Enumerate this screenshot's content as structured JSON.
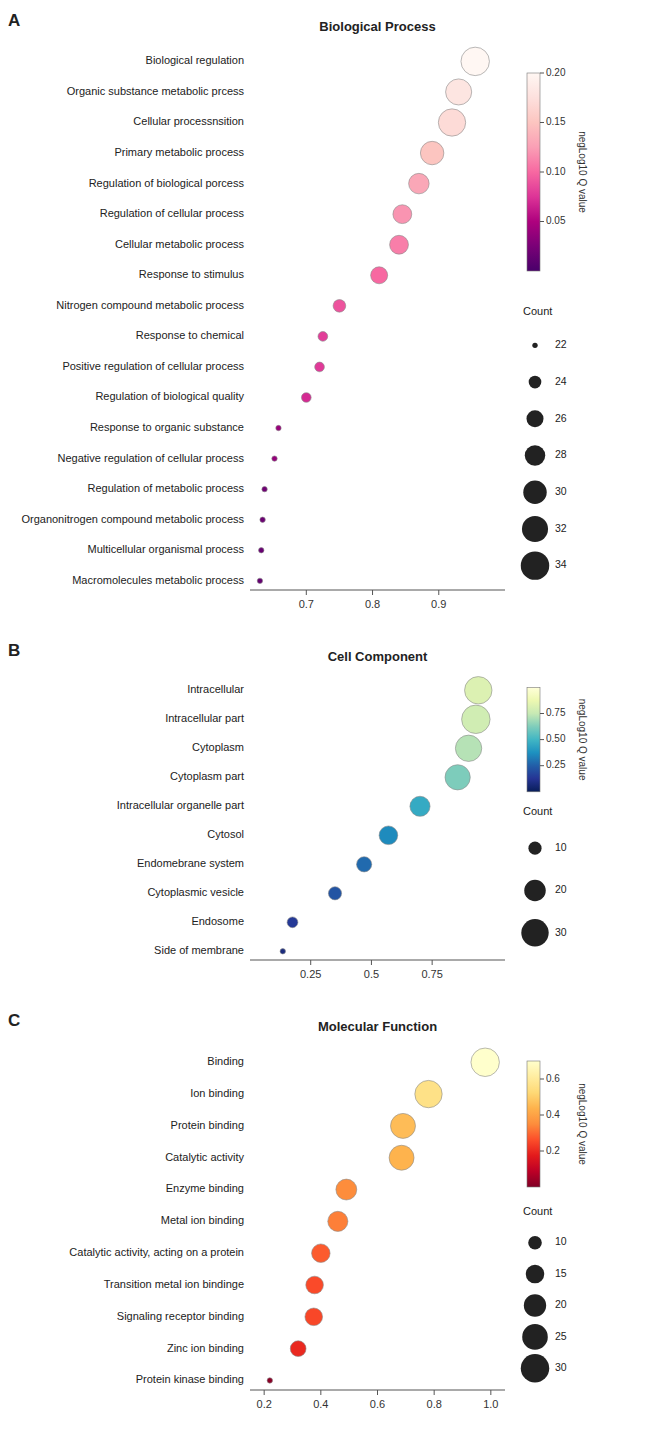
{
  "chart_data": [
    {
      "type": "scatter",
      "orientation": "horizontal",
      "grid": false,
      "panel_label": "A",
      "title": "Biological Process",
      "categories": [
        "Biological regulation",
        "Organic substance metabolic prcess",
        "Cellular processnsition",
        "Primary metabolic process",
        "Regulation of biological porcess",
        "Regulation of cellular process",
        "Cellular metabolic process",
        "Response to stimulus",
        "Nitrogen compound metabolic process",
        "Response to chemical",
        "Positive regulation of cellular process",
        "Regulation of biological quality",
        "Response to organic substance",
        "Negative regulation of cellular process",
        "Regulation of metabolic process",
        "Organonitrogen compound metabolic process",
        "Multicellular organismal process",
        "Macromolecules metabolic process"
      ],
      "values": [
        0.955,
        0.93,
        0.92,
        0.89,
        0.87,
        0.845,
        0.84,
        0.81,
        0.75,
        0.725,
        0.72,
        0.7,
        0.658,
        0.652,
        0.637,
        0.634,
        0.632,
        0.63
      ],
      "sizes": [
        34,
        32,
        33,
        30,
        28,
        27,
        27,
        26,
        24,
        23,
        23,
        23,
        22,
        22,
        22,
        22,
        22,
        22
      ],
      "size_range": [
        22,
        34
      ],
      "size_label": "Count",
      "size_legend": [
        22,
        24,
        26,
        28,
        30,
        32,
        34
      ],
      "color_values": [
        0.2,
        0.18,
        0.17,
        0.15,
        0.13,
        0.12,
        0.11,
        0.1,
        0.09,
        0.08,
        0.078,
        0.07,
        0.04,
        0.038,
        0.02,
        0.018,
        0.016,
        0.014
      ],
      "color_range": [
        0.0,
        0.2
      ],
      "color_ticks": [
        0.05,
        {
          "value": 0.1,
          "label": "0.10"
        },
        0.15,
        {
          "value": 0.2,
          "label": "0.20"
        }
      ],
      "color_label": "negLog10 Q value",
      "xlim": [
        0.615,
        1.0
      ],
      "xticks": [
        0.7,
        0.8,
        0.9
      ]
    },
    {
      "type": "scatter",
      "orientation": "horizontal",
      "grid": false,
      "panel_label": "B",
      "title": "Cell Component",
      "categories": [
        "Intracellular",
        "Intracellular part",
        "Cytoplasm",
        "Cytoplasm part",
        "Intracellular organelle part",
        "Cytosol",
        "Endomebrane system",
        "Cytoplasmic vesicle",
        "Endosome",
        "Side of membrane"
      ],
      "values": [
        0.94,
        0.93,
        0.9,
        0.855,
        0.7,
        0.57,
        0.47,
        0.35,
        0.175,
        0.135
      ],
      "sizes": [
        30,
        32,
        28,
        26,
        18,
        16,
        12,
        10,
        8,
        5
      ],
      "size_range": [
        5,
        32
      ],
      "size_label": "Count",
      "size_legend": [
        10,
        20,
        30
      ],
      "color_values": [
        0.82,
        0.78,
        0.72,
        0.62,
        0.46,
        0.36,
        0.28,
        0.22,
        0.14,
        0.08
      ],
      "color_range": [
        0.0,
        1.0
      ],
      "color_ticks": [
        0.25,
        {
          "value": 0.5,
          "label": "0.50"
        },
        0.75
      ],
      "color_label": "negLog10 Q value",
      "xlim": [
        0.0,
        1.05
      ],
      "xticks": [
        0.25,
        0.5,
        0.75
      ]
    },
    {
      "type": "scatter",
      "orientation": "horizontal",
      "grid": false,
      "panel_label": "C",
      "title": "Molecular Function",
      "categories": [
        "Binding",
        "Ion binding",
        "Protein binding",
        "Catalytic activity",
        "Enzyme binding",
        "Metal ion binding",
        "Catalytic activity, acting on a protein",
        "Transition metal ion bindinge",
        "Signaling receptor binding",
        "Zinc ion binding",
        "Protein kinase binding"
      ],
      "values": [
        0.98,
        0.78,
        0.69,
        0.685,
        0.49,
        0.46,
        0.4,
        0.378,
        0.375,
        0.32,
        0.22
      ],
      "sizes": [
        30,
        28,
        24,
        24,
        18,
        17,
        15,
        14,
        14,
        12,
        5
      ],
      "size_range": [
        5,
        30
      ],
      "size_label": "Count",
      "size_legend": [
        10,
        15,
        20,
        25,
        30
      ],
      "color_values": [
        0.7,
        0.56,
        0.46,
        0.44,
        0.35,
        0.33,
        0.28,
        0.255,
        0.25,
        0.2,
        0.015
      ],
      "color_range": [
        0.0,
        0.7
      ],
      "color_ticks": [
        0.2,
        0.4,
        0.6
      ],
      "color_label": "negLog10 Q value",
      "xlim": [
        0.15,
        1.05
      ],
      "xticks": [
        0.2,
        0.4,
        0.6,
        0.8,
        {
          "value": 1.0,
          "label": "1.0"
        }
      ]
    }
  ]
}
